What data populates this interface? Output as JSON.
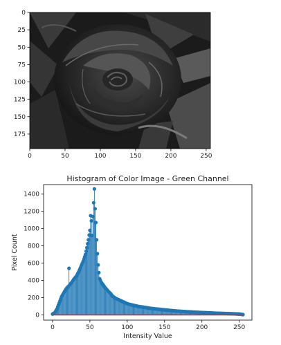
{
  "chart_data": [
    {
      "type": "image",
      "description_free": true,
      "xlim": [
        0,
        256
      ],
      "ylim": [
        196,
        0
      ],
      "xticks": [
        0,
        50,
        100,
        150,
        200,
        250
      ],
      "yticks": [
        0,
        25,
        50,
        75,
        100,
        125,
        150,
        175
      ],
      "xtick_labels": [
        "0",
        "50",
        "100",
        "150",
        "200",
        "250"
      ],
      "ytick_labels": [
        "0",
        "25",
        "50",
        "75",
        "100",
        "125",
        "150",
        "175"
      ]
    },
    {
      "type": "stem",
      "title": "Histogram of Color Image - Green Channel",
      "xlabel": "Intensity Value",
      "ylabel": "Pixel Count",
      "xlim": [
        -12,
        267
      ],
      "ylim": [
        -60,
        1510
      ],
      "xticks": [
        0,
        50,
        100,
        150,
        200,
        250
      ],
      "yticks": [
        0,
        200,
        400,
        600,
        800,
        1000,
        1200,
        1400
      ],
      "xtick_labels": [
        "0",
        "50",
        "100",
        "150",
        "200",
        "250"
      ],
      "ytick_labels": [
        "0",
        "200",
        "400",
        "600",
        "800",
        "1000",
        "1200",
        "1400"
      ],
      "colors": {
        "stem": "#1f77b4",
        "baseline": "#d62728"
      },
      "keypoints": [
        [
          0,
          10
        ],
        [
          3,
          25
        ],
        [
          6,
          70
        ],
        [
          9,
          140
        ],
        [
          12,
          210
        ],
        [
          15,
          255
        ],
        [
          18,
          300
        ],
        [
          21,
          330
        ],
        [
          22,
          540
        ],
        [
          23,
          350
        ],
        [
          26,
          380
        ],
        [
          29,
          420
        ],
        [
          32,
          450
        ],
        [
          35,
          500
        ],
        [
          38,
          560
        ],
        [
          41,
          620
        ],
        [
          44,
          700
        ],
        [
          46,
          780
        ],
        [
          48,
          870
        ],
        [
          50,
          980
        ],
        [
          51,
          1150
        ],
        [
          52,
          1090
        ],
        [
          53,
          920
        ],
        [
          54,
          1140
        ],
        [
          55,
          1300
        ],
        [
          56,
          1460
        ],
        [
          57,
          1230
        ],
        [
          58,
          1070
        ],
        [
          59,
          870
        ],
        [
          60,
          710
        ],
        [
          61,
          580
        ],
        [
          62,
          490
        ],
        [
          63,
          420
        ],
        [
          65,
          380
        ],
        [
          68,
          345
        ],
        [
          70,
          320
        ],
        [
          72,
          300
        ],
        [
          75,
          270
        ],
        [
          78,
          245
        ],
        [
          80,
          220
        ],
        [
          85,
          190
        ],
        [
          90,
          170
        ],
        [
          95,
          150
        ],
        [
          100,
          130
        ],
        [
          105,
          118
        ],
        [
          110,
          108
        ],
        [
          115,
          98
        ],
        [
          120,
          92
        ],
        [
          125,
          85
        ],
        [
          130,
          78
        ],
        [
          135,
          72
        ],
        [
          140,
          68
        ],
        [
          145,
          63
        ],
        [
          150,
          58
        ],
        [
          155,
          54
        ],
        [
          160,
          50
        ],
        [
          165,
          46
        ],
        [
          170,
          43
        ],
        [
          175,
          40
        ],
        [
          180,
          37
        ],
        [
          185,
          35
        ],
        [
          190,
          32
        ],
        [
          195,
          30
        ],
        [
          200,
          28
        ],
        [
          205,
          26
        ],
        [
          210,
          24
        ],
        [
          215,
          22
        ],
        [
          220,
          20
        ],
        [
          225,
          18
        ],
        [
          230,
          17
        ],
        [
          235,
          15
        ],
        [
          240,
          14
        ],
        [
          245,
          12
        ],
        [
          250,
          10
        ],
        [
          255,
          4
        ]
      ]
    }
  ]
}
